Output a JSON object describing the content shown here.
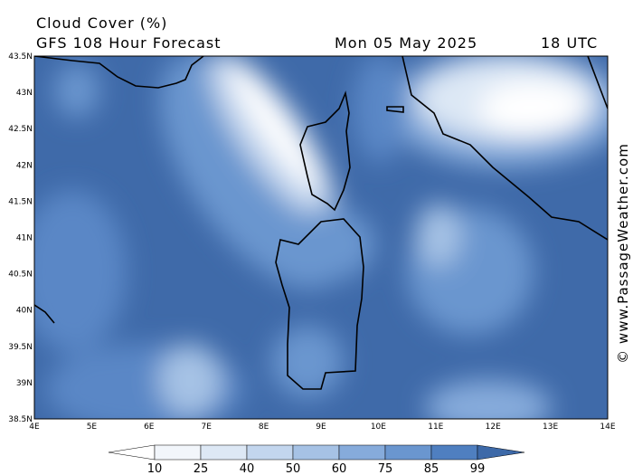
{
  "header": {
    "title": "Cloud Cover (%)",
    "subtitle": "GFS 108 Hour Forecast",
    "date": "Mon 05 May 2025",
    "time": "18 UTC"
  },
  "map": {
    "lon_ticks": [
      "4E",
      "5E",
      "6E",
      "7E",
      "8E",
      "9E",
      "10E",
      "11E",
      "12E",
      "13E",
      "14E"
    ],
    "lat_ticks": [
      "43.5N",
      "43N",
      "42.5N",
      "42N",
      "41.5N",
      "41N",
      "40.5N",
      "40N",
      "39.5N",
      "39N",
      "38.5N"
    ]
  },
  "colorbar": {
    "ticks": [
      "10",
      "25",
      "40",
      "50",
      "60",
      "75",
      "85",
      "99"
    ],
    "colors": [
      "#ffffff",
      "#f2f6fb",
      "#dde8f5",
      "#c3d6ee",
      "#a6c2e5",
      "#86abdb",
      "#6a96cf",
      "#4f7fc0",
      "#3d69a8"
    ]
  },
  "watermark": "© www.PassageWeather.com"
}
